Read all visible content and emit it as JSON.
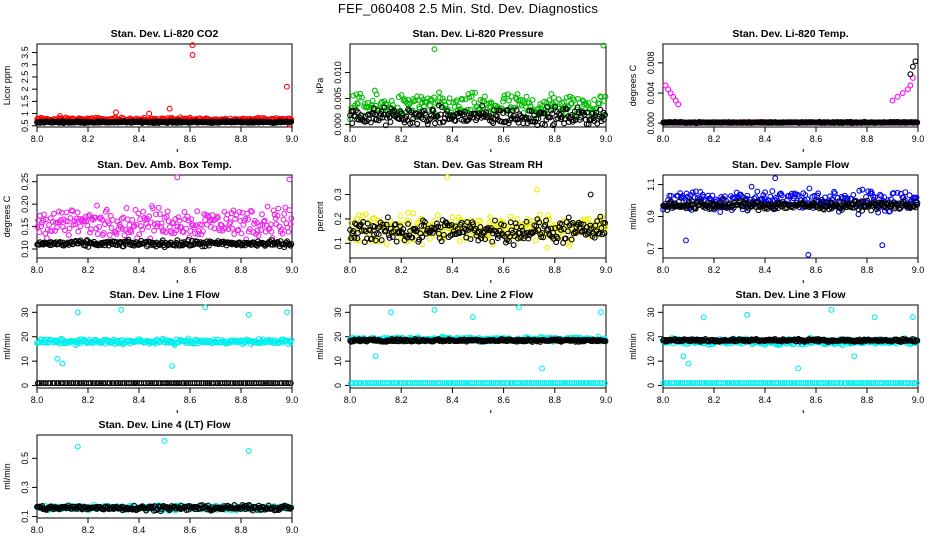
{
  "page_title": "FEF_060408  2.5 Min. Std. Dev. Diagnostics",
  "chart_data": [
    {
      "type": "scatter",
      "title": "Stan. Dev. Li-820 CO2",
      "xlabel": "",
      "ylabel": "Licor ppm",
      "xlim": [
        8.0,
        9.0
      ],
      "ylim": [
        0.45,
        3.85
      ],
      "x_ticks": [
        "8.0",
        "8.2",
        "8.4",
        "8.6",
        "8.8",
        "9.0"
      ],
      "y_ticks": [
        0.5,
        1.0,
        1.5,
        2.0,
        2.5,
        3.0,
        3.5
      ],
      "series": [
        {
          "color": "#ff0000",
          "base": 0.75,
          "spread": 0.12,
          "outliers": [
            [
              8.09,
              0.9
            ],
            [
              8.31,
              1.05
            ],
            [
              8.44,
              1.0
            ],
            [
              8.52,
              1.2
            ],
            [
              8.61,
              3.8
            ],
            [
              8.61,
              3.4
            ],
            [
              8.98,
              2.1
            ],
            [
              8.99,
              0.55
            ]
          ]
        },
        {
          "color": "#000000",
          "base": 0.65,
          "spread": 0.05,
          "outliers": []
        }
      ]
    },
    {
      "type": "scatter",
      "title": "Stan. Dev. Li-820 Pressure",
      "xlabel": "",
      "ylabel": "kPa",
      "xlim": [
        8.0,
        9.0
      ],
      "ylim": [
        -0.0005,
        0.0155
      ],
      "x_ticks": [
        "8.0",
        "8.2",
        "8.4",
        "8.6",
        "8.8",
        "9.0"
      ],
      "y_ticks": [
        0.0,
        0.005,
        0.01
      ],
      "y_tick_labels": [
        "0.000",
        "0.005",
        "0.010"
      ],
      "series": [
        {
          "color": "#00bb00",
          "base": 0.0035,
          "spread": 0.0035,
          "outliers": [
            [
              8.33,
              0.0145
            ],
            [
              8.99,
              0.0152
            ]
          ]
        },
        {
          "color": "#000000",
          "base": 0.0015,
          "spread": 0.0025,
          "outliers": []
        }
      ]
    },
    {
      "type": "scatter",
      "title": "Stan. Dev. Li-820 Temp.",
      "xlabel": "",
      "ylabel": "degrees C",
      "xlim": [
        8.0,
        9.0
      ],
      "ylim": [
        -0.0005,
        0.0105
      ],
      "x_ticks": [
        "8.0",
        "8.2",
        "8.4",
        "8.6",
        "8.8",
        "9.0"
      ],
      "y_ticks": [
        0.0,
        0.004,
        0.008
      ],
      "y_tick_labels": [
        "0.000",
        "0.004",
        "0.008"
      ],
      "series": [
        {
          "color": "#ff00ff",
          "base": 0.0001,
          "spread": 0.0001,
          "outliers": [
            [
              8.01,
              0.005
            ],
            [
              8.02,
              0.0045
            ],
            [
              8.03,
              0.004
            ],
            [
              8.04,
              0.0035
            ],
            [
              8.05,
              0.003
            ],
            [
              8.06,
              0.0025
            ],
            [
              8.9,
              0.003
            ],
            [
              8.92,
              0.0035
            ],
            [
              8.94,
              0.004
            ],
            [
              8.96,
              0.0045
            ],
            [
              8.97,
              0.005
            ],
            [
              8.98,
              0.006
            ]
          ]
        },
        {
          "color": "#000000",
          "base": 0.0001,
          "spread": 0.0001,
          "outliers": [
            [
              8.99,
              0.0082
            ],
            [
              8.98,
              0.0075
            ],
            [
              8.97,
              0.0065
            ]
          ]
        }
      ]
    },
    {
      "type": "scatter",
      "title": "Stan. Dev. Amb. Box Temp.",
      "xlabel": "",
      "ylabel": "degrees C",
      "xlim": [
        8.0,
        9.0
      ],
      "ylim": [
        0.08,
        0.265
      ],
      "x_ticks": [
        "8.0",
        "8.2",
        "8.4",
        "8.6",
        "8.8",
        "9.0"
      ],
      "y_ticks": [
        0.1,
        0.15,
        0.2,
        0.25
      ],
      "y_tick_labels": [
        "0.10",
        "0.15",
        "0.20",
        "0.25"
      ],
      "series": [
        {
          "color": "#ee22ee",
          "base": 0.16,
          "spread": 0.05,
          "outliers": [
            [
              8.55,
              0.26
            ],
            [
              8.99,
              0.255
            ]
          ]
        },
        {
          "color": "#000000",
          "base": 0.112,
          "spread": 0.01,
          "outliers": []
        }
      ]
    },
    {
      "type": "scatter",
      "title": "Stan. Dev. Gas Stream RH",
      "xlabel": "",
      "ylabel": "percent",
      "xlim": [
        8.0,
        9.0
      ],
      "ylim": [
        0.04,
        0.38
      ],
      "x_ticks": [
        "8.0",
        "8.2",
        "8.4",
        "8.6",
        "8.8",
        "9.0"
      ],
      "y_ticks": [
        0.1,
        0.2,
        0.3
      ],
      "series": [
        {
          "color": "#eeee00",
          "base": 0.16,
          "spread": 0.09,
          "outliers": [
            [
              8.38,
              0.37
            ],
            [
              8.73,
              0.32
            ]
          ]
        },
        {
          "color": "#000000",
          "base": 0.15,
          "spread": 0.07,
          "outliers": [
            [
              8.94,
              0.3
            ]
          ]
        }
      ]
    },
    {
      "type": "scatter",
      "title": "Stan. Dev. Sample Flow",
      "xlabel": "",
      "ylabel": "ml/min",
      "xlim": [
        8.0,
        9.0
      ],
      "ylim": [
        0.64,
        1.16
      ],
      "x_ticks": [
        "8.0",
        "8.2",
        "8.4",
        "8.6",
        "8.8",
        "9.0"
      ],
      "y_ticks": [
        0.7,
        0.9,
        1.1
      ],
      "y_tick_labels": [
        "0.7",
        "0.9",
        "1.1"
      ],
      "series": [
        {
          "color": "#0000ee",
          "base": 1.0,
          "spread": 0.1,
          "outliers": [
            [
              8.09,
              0.75
            ],
            [
              8.57,
              0.66
            ],
            [
              8.44,
              1.14
            ],
            [
              8.86,
              0.72
            ]
          ]
        },
        {
          "color": "#000000",
          "base": 0.97,
          "spread": 0.04,
          "outliers": []
        }
      ]
    },
    {
      "type": "scatter",
      "title": "Stan. Dev. Line 1 Flow",
      "xlabel": "",
      "ylabel": "ml/min",
      "xlim": [
        8.0,
        9.0
      ],
      "ylim": [
        -1,
        33
      ],
      "x_ticks": [
        "8.0",
        "8.2",
        "8.4",
        "8.6",
        "8.8",
        "9.0"
      ],
      "y_ticks": [
        0,
        10,
        20,
        30
      ],
      "series": [
        {
          "color": "#00eeee",
          "base": 18.0,
          "spread": 1.5,
          "outliers": [
            [
              8.08,
              11
            ],
            [
              8.1,
              9
            ],
            [
              8.16,
              30
            ],
            [
              8.33,
              31
            ],
            [
              8.53,
              8
            ],
            [
              8.66,
              32
            ],
            [
              8.83,
              29
            ],
            [
              8.98,
              30
            ]
          ]
        },
        {
          "color": "#000000",
          "base": 1.0,
          "spread": 0.0,
          "outliers": []
        }
      ]
    },
    {
      "type": "scatter",
      "title": "Stan. Dev. Line 2 Flow",
      "xlabel": "",
      "ylabel": "ml/min",
      "xlim": [
        8.0,
        9.0
      ],
      "ylim": [
        -1,
        33
      ],
      "x_ticks": [
        "8.0",
        "8.2",
        "8.4",
        "8.6",
        "8.8",
        "9.0"
      ],
      "y_ticks": [
        0,
        10,
        20,
        30
      ],
      "series": [
        {
          "color": "#00eeee",
          "base": 19.0,
          "spread": 1.5,
          "outliers": [
            [
              8.16,
              30
            ],
            [
              8.33,
              31
            ],
            [
              8.48,
              28
            ],
            [
              8.66,
              32
            ],
            [
              8.75,
              7
            ],
            [
              8.98,
              30
            ],
            [
              8.1,
              12
            ]
          ]
        },
        {
          "color": "#00eeee",
          "base": 1.0,
          "spread": 0.0,
          "outliers": []
        },
        {
          "color": "#000000",
          "base": 18.5,
          "spread": 0.8,
          "outliers": []
        }
      ]
    },
    {
      "type": "scatter",
      "title": "Stan. Dev. Line 3 Flow",
      "xlabel": "",
      "ylabel": "ml/min",
      "xlim": [
        8.0,
        9.0
      ],
      "ylim": [
        -1,
        33
      ],
      "x_ticks": [
        "8.0",
        "8.2",
        "8.4",
        "8.6",
        "8.8",
        "9.0"
      ],
      "y_ticks": [
        0,
        10,
        20,
        30
      ],
      "series": [
        {
          "color": "#00eeee",
          "base": 18.0,
          "spread": 1.8,
          "outliers": [
            [
              8.08,
              12
            ],
            [
              8.1,
              9
            ],
            [
              8.16,
              28
            ],
            [
              8.33,
              29
            ],
            [
              8.53,
              7
            ],
            [
              8.66,
              31
            ],
            [
              8.75,
              12
            ],
            [
              8.83,
              28
            ],
            [
              8.98,
              28
            ]
          ]
        },
        {
          "color": "#00eeee",
          "base": 1.0,
          "spread": 0.0,
          "outliers": []
        },
        {
          "color": "#000000",
          "base": 18.5,
          "spread": 0.8,
          "outliers": []
        }
      ]
    },
    {
      "type": "scatter",
      "title": "Stan. Dev. Line 4 (LT) Flow",
      "xlabel": "",
      "ylabel": "ml/min",
      "xlim": [
        8.0,
        9.0
      ],
      "ylim": [
        0.09,
        0.66
      ],
      "x_ticks": [
        "8.0",
        "8.2",
        "8.4",
        "8.6",
        "8.8",
        "9.0"
      ],
      "y_ticks": [
        0.1,
        0.3,
        0.5
      ],
      "y_tick_labels": [
        "0.1",
        "0.3",
        "0.5"
      ],
      "series": [
        {
          "color": "#00eeee",
          "base": 0.16,
          "spread": 0.025,
          "outliers": [
            [
              8.16,
              0.58
            ],
            [
              8.5,
              0.62
            ],
            [
              8.83,
              0.55
            ]
          ]
        },
        {
          "color": "#000000",
          "base": 0.16,
          "spread": 0.025,
          "outliers": []
        }
      ]
    }
  ]
}
